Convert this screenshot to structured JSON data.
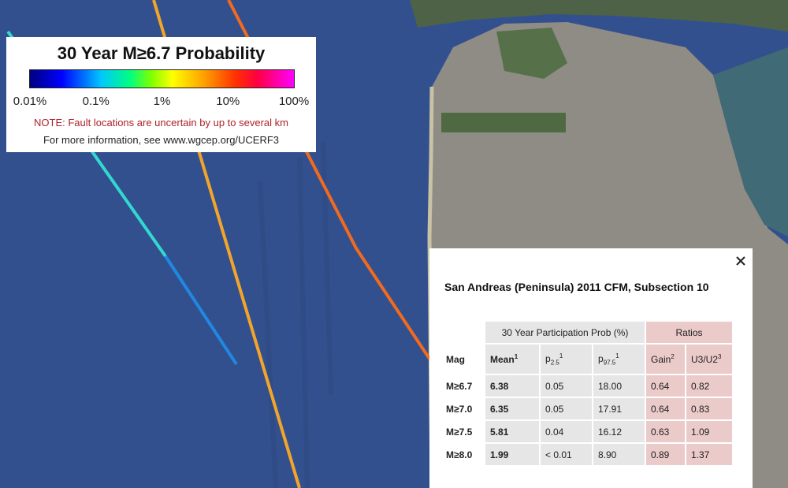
{
  "legend": {
    "title": "30 Year M≥6.7 Probability",
    "scale_labels": [
      "0.01%",
      "0.1%",
      "1%",
      "10%",
      "100%"
    ],
    "note": "NOTE: Fault locations are uncertain by up to several km",
    "info": "For more information, see www.wgcep.org/UCERF3"
  },
  "popup": {
    "title": "San Andreas (Peninsula) 2011 CFM, Subsection 10",
    "table": {
      "group_headers": [
        "30 Year Participation Prob (%)",
        "Ratios"
      ],
      "headers": [
        {
          "text": "Mag"
        },
        {
          "text": "Mean",
          "sup": "1"
        },
        {
          "text": "p",
          "sub": "2.5",
          "sup": "1"
        },
        {
          "text": "p",
          "sub": "97.5",
          "sup": "1"
        },
        {
          "text": "Gain",
          "sup": "2"
        },
        {
          "text": "U3/U2",
          "sup": "3"
        }
      ],
      "rows": [
        [
          "M≥6.7",
          "6.38",
          "0.05",
          "18.00",
          "0.64",
          "0.82"
        ],
        [
          "M≥7.0",
          "6.35",
          "0.05",
          "17.91",
          "0.64",
          "0.83"
        ],
        [
          "M≥7.5",
          "5.81",
          "0.04",
          "16.12",
          "0.63",
          "1.09"
        ],
        [
          "M≥8.0",
          "1.99",
          "< 0.01",
          "8.90",
          "0.89",
          "1.37"
        ]
      ]
    }
  }
}
